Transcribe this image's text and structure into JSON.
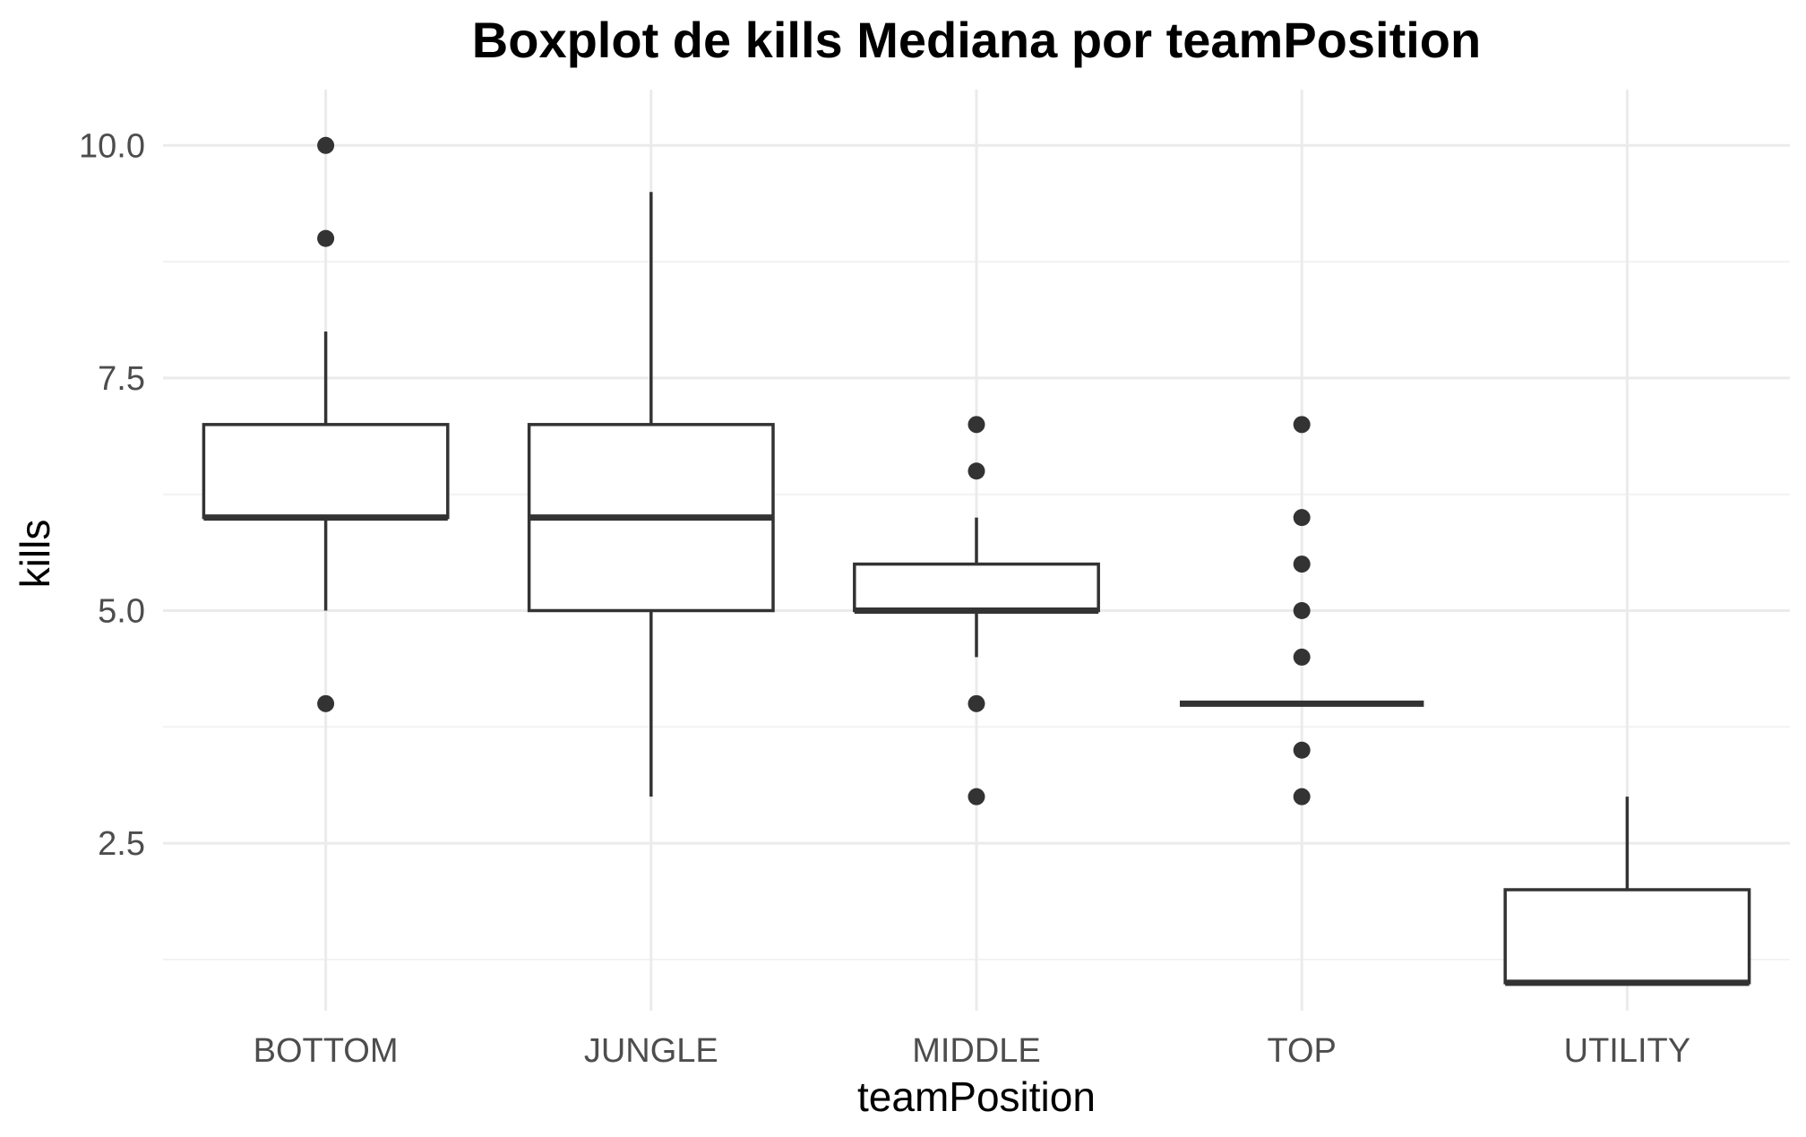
{
  "chart_data": {
    "type": "boxplot",
    "title": "Boxplot de kills Mediana por teamPosition",
    "xlabel": "teamPosition",
    "ylabel": "kills",
    "ylim": [
      0.7,
      10.6
    ],
    "y_major_ticks": [
      2.5,
      5.0,
      7.5,
      10.0
    ],
    "y_tick_labels": [
      "2.5",
      "5.0",
      "7.5",
      "10.0"
    ],
    "y_minor_ticks": [
      1.25,
      3.75,
      6.25,
      8.75
    ],
    "grid": true,
    "categories": [
      "BOTTOM",
      "JUNGLE",
      "MIDDLE",
      "TOP",
      "UTILITY"
    ],
    "boxes": [
      {
        "category": "BOTTOM",
        "whisker_low": 5.0,
        "q1": 6.0,
        "median": 6.0,
        "q3": 7.0,
        "whisker_high": 8.0,
        "outliers": [
          4.0,
          9.0,
          10.0
        ]
      },
      {
        "category": "JUNGLE",
        "whisker_low": 3.0,
        "q1": 5.0,
        "median": 6.0,
        "q3": 7.0,
        "whisker_high": 9.5,
        "outliers": []
      },
      {
        "category": "MIDDLE",
        "whisker_low": 4.5,
        "q1": 5.0,
        "median": 5.0,
        "q3": 5.5,
        "whisker_high": 6.0,
        "outliers": [
          3.0,
          4.0,
          6.5,
          7.0
        ]
      },
      {
        "category": "TOP",
        "whisker_low": 4.0,
        "q1": 4.0,
        "median": 4.0,
        "q3": 4.0,
        "whisker_high": 4.0,
        "outliers": [
          3.0,
          3.5,
          4.5,
          5.0,
          5.5,
          6.0,
          7.0
        ]
      },
      {
        "category": "UTILITY",
        "whisker_low": 1.0,
        "q1": 1.0,
        "median": 1.0,
        "q3": 2.0,
        "whisker_high": 3.0,
        "outliers": []
      }
    ],
    "colors": {
      "box_line": "#333333",
      "box_fill": "#ffffff",
      "grid": "#ebebeb"
    }
  }
}
